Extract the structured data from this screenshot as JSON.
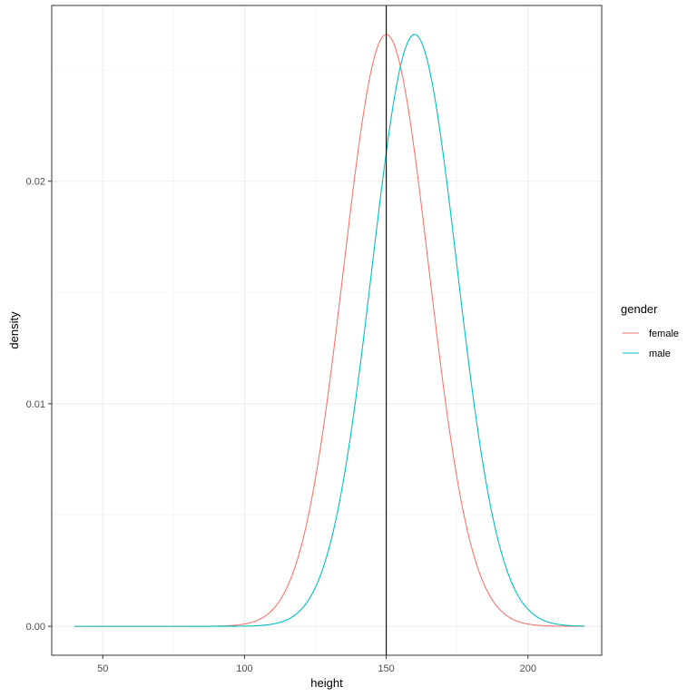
{
  "chart_data": {
    "type": "line",
    "xlabel": "height",
    "ylabel": "density",
    "xlim": [
      32,
      226
    ],
    "ylim": [
      -0.0013,
      0.0279
    ],
    "x_ticks": [
      50,
      100,
      150,
      200
    ],
    "x_tick_labels": [
      "50",
      "100",
      "150",
      "200"
    ],
    "y_ticks": [
      0.0,
      0.01,
      0.02
    ],
    "y_tick_labels": [
      "0.00",
      "0.01",
      "0.02"
    ],
    "grid": true,
    "vline": {
      "x": 150,
      "color": "#000000"
    },
    "legend": {
      "title": "gender",
      "placement": "right"
    },
    "series": [
      {
        "name": "female",
        "color": "#F8766D",
        "distribution": {
          "mean": 150,
          "sd": 15
        },
        "x_range": [
          40,
          220
        ]
      },
      {
        "name": "male",
        "color": "#00BFC4",
        "distribution": {
          "mean": 160,
          "sd": 15
        },
        "x_range": [
          40,
          220
        ]
      }
    ]
  }
}
